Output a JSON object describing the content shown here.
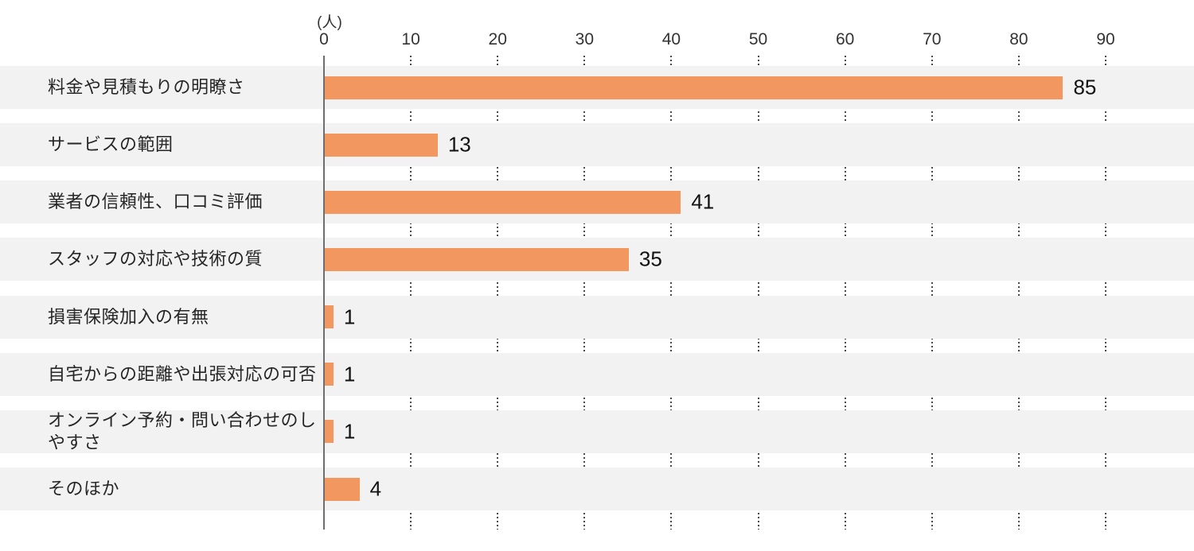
{
  "chart_data": {
    "type": "bar",
    "orientation": "horizontal",
    "title": "",
    "unit_label": "(人)",
    "categories": [
      "料金や見積もりの明瞭さ",
      "サービスの範囲",
      "業者の信頼性、口コミ評価",
      "スタッフの対応や技術の質",
      "損害保険加入の有無",
      "自宅からの距離や出張対応の可否",
      "オンライン予約・問い合わせのしやすさ",
      "そのほか"
    ],
    "values": [
      85,
      13,
      41,
      35,
      1,
      1,
      1,
      4
    ],
    "x_ticks": [
      0,
      10,
      20,
      30,
      40,
      50,
      60,
      70,
      80,
      90
    ],
    "xlim": [
      0,
      90
    ],
    "grid": "dotted-vertical",
    "legend": "none",
    "colors": {
      "bar": "#F2975F",
      "row_band": "#F2F2F2",
      "axis_line": "#6E6E6E",
      "grid_dot": "#4A4A4A",
      "category_text": "#262626",
      "value_text": "#111111",
      "tick_text": "#333333"
    }
  }
}
